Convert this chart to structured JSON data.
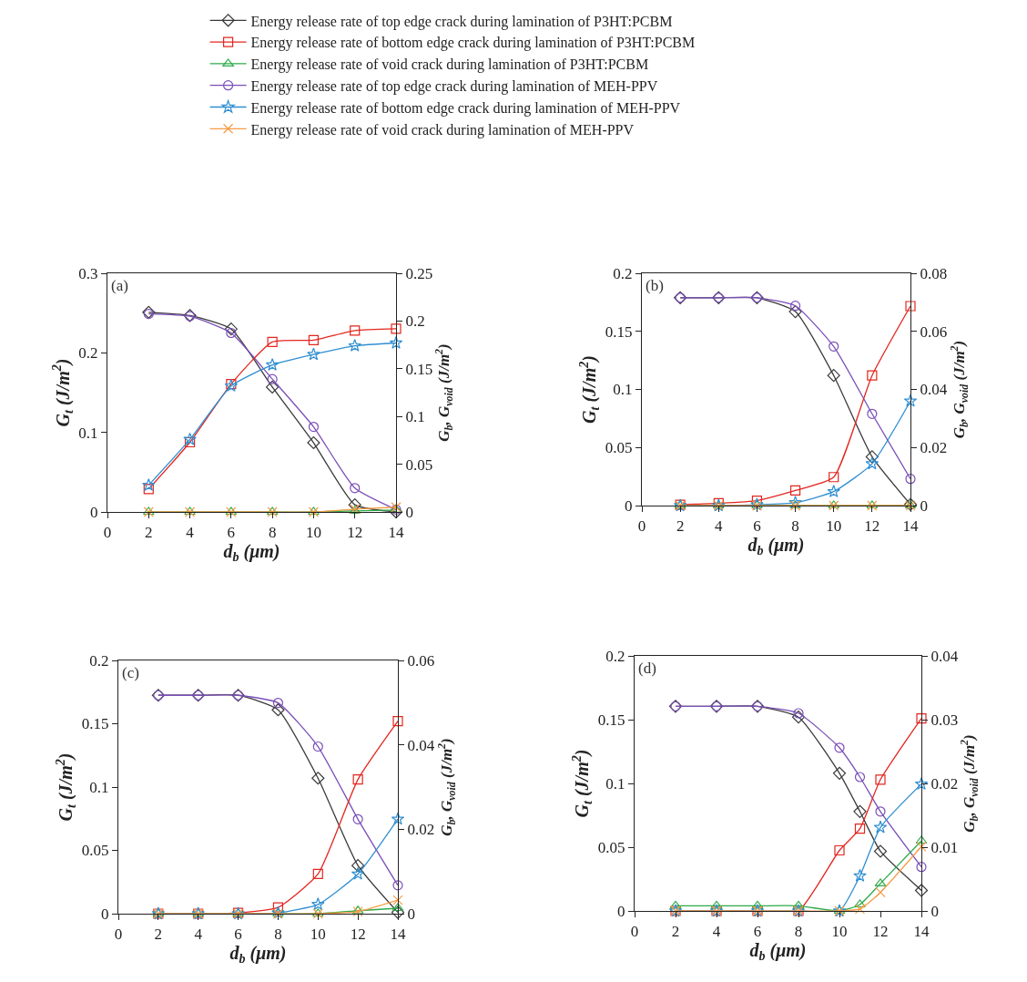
{
  "chart_data": [
    {
      "type": "line",
      "xlabel": "d$_{b}$ (μm)",
      "ylabel": "G$_{t}$ (J/m$^{2}$)",
      "y2label": "G$_{b}$, G$_{void}$ (J/m$^{2}$)",
      "annotations": [
        "(a)"
      ],
      "legend": "top",
      "grid": false,
      "line_style": "solid",
      "x": [
        2,
        4,
        6,
        8,
        10,
        12,
        14
      ],
      "xlim": [
        0,
        14
      ],
      "xticks": [
        0,
        2,
        4,
        6,
        8,
        10,
        12,
        14
      ],
      "ylim": [
        0,
        0.3
      ],
      "yticks": [
        0,
        0.1,
        0.2,
        0.3
      ],
      "y2lim": [
        0,
        0.25
      ],
      "y2ticks": [
        0,
        0.05,
        0.1,
        0.15,
        0.2,
        0.25
      ],
      "series": [
        {
          "name": "Energy release rate of top edge crack during lamination of P3HT:PCBM",
          "color": "#3a3a3a",
          "marker": "diamond",
          "values": [
            0.251,
            0.247,
            0.23,
            0.157,
            0.087,
            0.009,
            0.0
          ]
        },
        {
          "name": "Energy release rate of bottom edge crack during lamination of P3HT:PCBM",
          "color": "#e3261f",
          "marker": "square",
          "axis": "y2",
          "values": [
            0.024,
            0.073,
            0.134,
            0.178,
            0.18,
            0.19,
            0.192
          ]
        },
        {
          "name": "Energy release rate of void crack during lamination of P3HT:PCBM",
          "color": "#2eaa4a",
          "marker": "triangle",
          "axis": "y2",
          "values": [
            0,
            0,
            0,
            0,
            0,
            0.001,
            0.002
          ]
        },
        {
          "name": "Energy release rate of top edge crack during lamination of MEH-PPV",
          "color": "#7a4fb8",
          "marker": "circle",
          "values": [
            0.249,
            0.246,
            0.225,
            0.167,
            0.107,
            0.03,
            0.003
          ]
        },
        {
          "name": "Energy release rate of bottom edge crack during lamination of MEH-PPV",
          "color": "#2f8fd2",
          "marker": "star",
          "axis": "y2",
          "values": [
            0.028,
            0.076,
            0.132,
            0.154,
            0.165,
            0.174,
            0.177
          ]
        },
        {
          "name": "Energy release rate of void crack during lamination of MEH-PPV",
          "color": "#f59c45",
          "marker": "cross",
          "axis": "y2",
          "values": [
            0,
            0,
            0,
            0,
            0,
            0.003,
            0.005
          ]
        }
      ]
    },
    {
      "type": "line",
      "xlabel": "d$_{b}$ (μm)",
      "ylabel": "G$_{t}$ (J/m$^{2}$)",
      "y2label": "G$_{b}$, G$_{void}$ (J/m$^{2}$)",
      "annotations": [
        "(b)"
      ],
      "grid": false,
      "line_style": "solid",
      "x": [
        2,
        4,
        6,
        8,
        10,
        12,
        14
      ],
      "xlim": [
        0,
        14
      ],
      "xticks": [
        0,
        2,
        4,
        6,
        8,
        10,
        12,
        14
      ],
      "ylim": [
        0,
        0.2
      ],
      "yticks": [
        0,
        0.05,
        0.1,
        0.15,
        0.2
      ],
      "y2lim": [
        0,
        0.08
      ],
      "y2ticks": [
        0,
        0.02,
        0.04,
        0.06,
        0.08
      ],
      "series": [
        {
          "color": "#3a3a3a",
          "marker": "diamond",
          "values": [
            0.179,
            0.179,
            0.179,
            0.167,
            0.112,
            0.042,
            0.001
          ]
        },
        {
          "color": "#e3261f",
          "marker": "square",
          "axis": "y2",
          "values": [
            0.0003,
            0.0008,
            0.0017,
            0.0052,
            0.0098,
            0.0448,
            0.0687
          ]
        },
        {
          "color": "#2eaa4a",
          "marker": "triangle",
          "axis": "y2",
          "values": [
            0,
            0,
            0,
            0,
            0,
            0,
            0
          ]
        },
        {
          "color": "#7a4fb8",
          "marker": "circle",
          "values": [
            0.179,
            0.179,
            0.179,
            0.172,
            0.137,
            0.079,
            0.023
          ]
        },
        {
          "color": "#2f8fd2",
          "marker": "star",
          "axis": "y2",
          "values": [
            0,
            0,
            0.0003,
            0.001,
            0.0048,
            0.0144,
            0.036
          ]
        },
        {
          "color": "#f59c45",
          "marker": "cross",
          "axis": "y2",
          "values": [
            0,
            0,
            0,
            0,
            0,
            0,
            0
          ]
        }
      ]
    },
    {
      "type": "line",
      "xlabel": "d$_{b}$ (μm)",
      "ylabel": "G$_{t}$ (J/m$^{2}$)",
      "y2label": "G$_{b}$, G$_{void}$ (J/m$^{2}$)",
      "annotations": [
        "(c)"
      ],
      "grid": false,
      "line_style": "solid",
      "x": [
        2,
        4,
        6,
        8,
        10,
        12,
        14
      ],
      "xlim": [
        0,
        14
      ],
      "xticks": [
        0,
        2,
        4,
        6,
        8,
        10,
        12,
        14
      ],
      "ylim": [
        0,
        0.2
      ],
      "yticks": [
        0,
        0.05,
        0.1,
        0.15,
        0.2
      ],
      "y2lim": [
        0,
        0.06
      ],
      "y2ticks": [
        0,
        0.02,
        0.04,
        0.06
      ],
      "series": [
        {
          "color": "#3a3a3a",
          "marker": "diamond",
          "values": [
            0.1725,
            0.1725,
            0.1725,
            0.161,
            0.107,
            0.038,
            0.001
          ]
        },
        {
          "color": "#e3261f",
          "marker": "square",
          "axis": "y2",
          "values": [
            0,
            0,
            0.0002,
            0.0015,
            0.0094,
            0.0318,
            0.0456
          ]
        },
        {
          "color": "#2eaa4a",
          "marker": "triangle",
          "axis": "y2",
          "values": [
            0,
            0,
            0,
            0,
            0,
            0.0007,
            0.0013
          ]
        },
        {
          "color": "#7a4fb8",
          "marker": "circle",
          "values": [
            0.1725,
            0.1725,
            0.1725,
            0.1665,
            0.132,
            0.0746,
            0.0224
          ]
        },
        {
          "color": "#2f8fd2",
          "marker": "star",
          "axis": "y2",
          "values": [
            0,
            0,
            0,
            0.0002,
            0.0022,
            0.0094,
            0.0224
          ]
        },
        {
          "color": "#f59c45",
          "marker": "cross",
          "axis": "y2",
          "values": [
            0,
            0,
            0,
            0,
            0,
            0.0005,
            0.0032
          ]
        }
      ]
    },
    {
      "type": "line",
      "xlabel": "d$_{b}$ (μm)",
      "ylabel": "G$_{t}$ (J/m$^{2}$)",
      "y2label": "G$_{b}$, G$_{void}$ (J/m$^{2}$)",
      "annotations": [
        "(d)"
      ],
      "grid": false,
      "line_style": "solid",
      "x": [
        2,
        4,
        6,
        8,
        10,
        11,
        12,
        14
      ],
      "xlim": [
        0,
        14
      ],
      "xticks": [
        0,
        2,
        4,
        6,
        8,
        10,
        12,
        14
      ],
      "ylim": [
        0,
        0.2
      ],
      "yticks": [
        0,
        0.05,
        0.1,
        0.15,
        0.2
      ],
      "y2lim": [
        0,
        0.04
      ],
      "y2ticks": [
        0,
        0.01,
        0.02,
        0.03,
        0.04
      ],
      "series": [
        {
          "color": "#3a3a3a",
          "marker": "diamond",
          "values": [
            0.1605,
            0.1605,
            0.1605,
            0.152,
            0.108,
            0.078,
            0.0468,
            0.0161
          ]
        },
        {
          "color": "#e3261f",
          "marker": "square",
          "axis": "y2",
          "values": [
            0,
            0,
            0,
            0,
            0.0095,
            0.0129,
            0.0206,
            0.0302
          ]
        },
        {
          "color": "#2eaa4a",
          "marker": "triangle",
          "axis": "y2",
          "values": [
            0.0008,
            0.0008,
            0.0008,
            0.0008,
            0,
            0.001,
            0.0043,
            0.011
          ]
        },
        {
          "color": "#7a4fb8",
          "marker": "circle",
          "values": [
            0.1605,
            0.1605,
            0.1605,
            0.155,
            0.128,
            0.105,
            0.078,
            0.0345
          ]
        },
        {
          "color": "#2f8fd2",
          "marker": "star",
          "axis": "y2",
          "values": [
            0,
            0,
            0,
            0,
            0,
            0.0055,
            0.0131,
            0.0199
          ]
        },
        {
          "color": "#f59c45",
          "marker": "cross",
          "axis": "y2",
          "values": [
            0,
            0,
            0,
            0,
            0,
            0.0003,
            0.0029,
            0.0101
          ]
        }
      ]
    }
  ]
}
